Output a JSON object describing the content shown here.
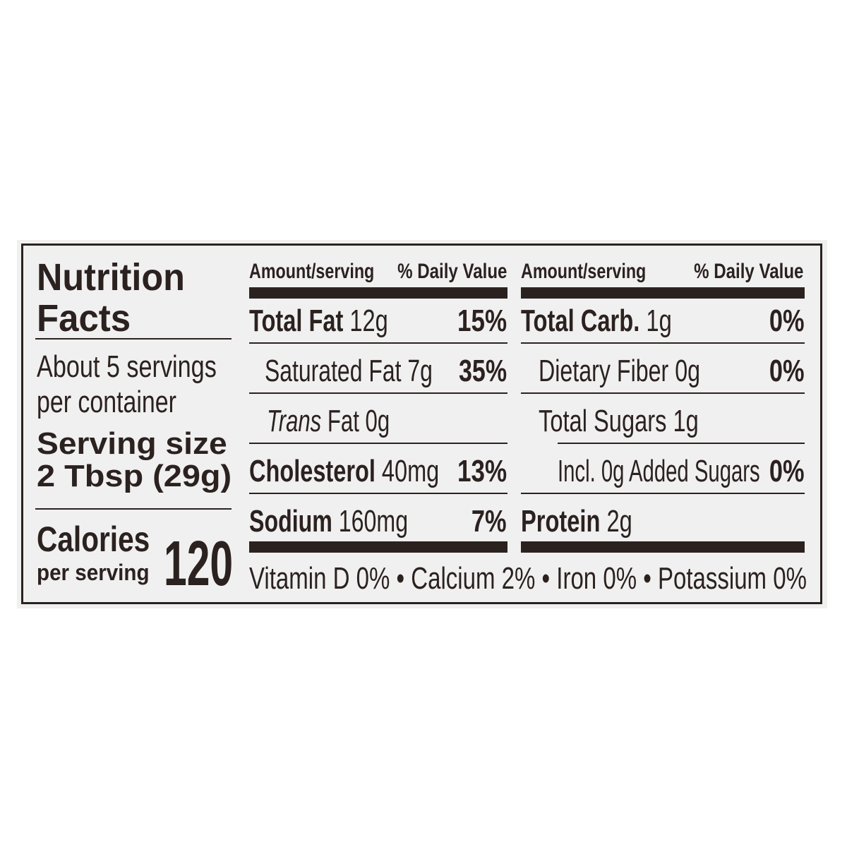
{
  "colors": {
    "ink": "#2b2220",
    "panel": "#f1f0f0"
  },
  "title": {
    "line1": "Nutrition",
    "line2": "Facts"
  },
  "servings": {
    "line1": "About 5 servings",
    "line2": "per container"
  },
  "serving_size": {
    "label": "Serving size",
    "value": "2 Tbsp (29g)"
  },
  "calories": {
    "label": "Calories",
    "sublabel": "per serving",
    "value": "120"
  },
  "headers": {
    "amount": "Amount/serving",
    "dv": "% Daily Value"
  },
  "left_nutrients": [
    {
      "name": "Total Fat",
      "amount": "12g",
      "dv": "15%"
    },
    {
      "name": "Saturated Fat",
      "amount": "7g",
      "dv": "35%"
    },
    {
      "name_italic": "Trans",
      "name": "Fat",
      "amount": "0g",
      "dv": ""
    },
    {
      "name": "Cholesterol",
      "amount": "40mg",
      "dv": "13%"
    },
    {
      "name": "Sodium",
      "amount": "160mg",
      "dv": "7%"
    }
  ],
  "right_nutrients": [
    {
      "name": "Total Carb.",
      "amount": "1g",
      "dv": "0%"
    },
    {
      "name": "Dietary Fiber",
      "amount": "0g",
      "dv": "0%"
    },
    {
      "name": "Total Sugars",
      "amount": "1g",
      "dv": ""
    },
    {
      "name": "Incl. 0g Added Sugars",
      "amount": "",
      "dv": "0%"
    },
    {
      "name": "Protein",
      "amount": "2g",
      "dv": ""
    }
  ],
  "footer": "Vitamin D 0% • Calcium 2% • Iron 0% • Potassium 0%"
}
